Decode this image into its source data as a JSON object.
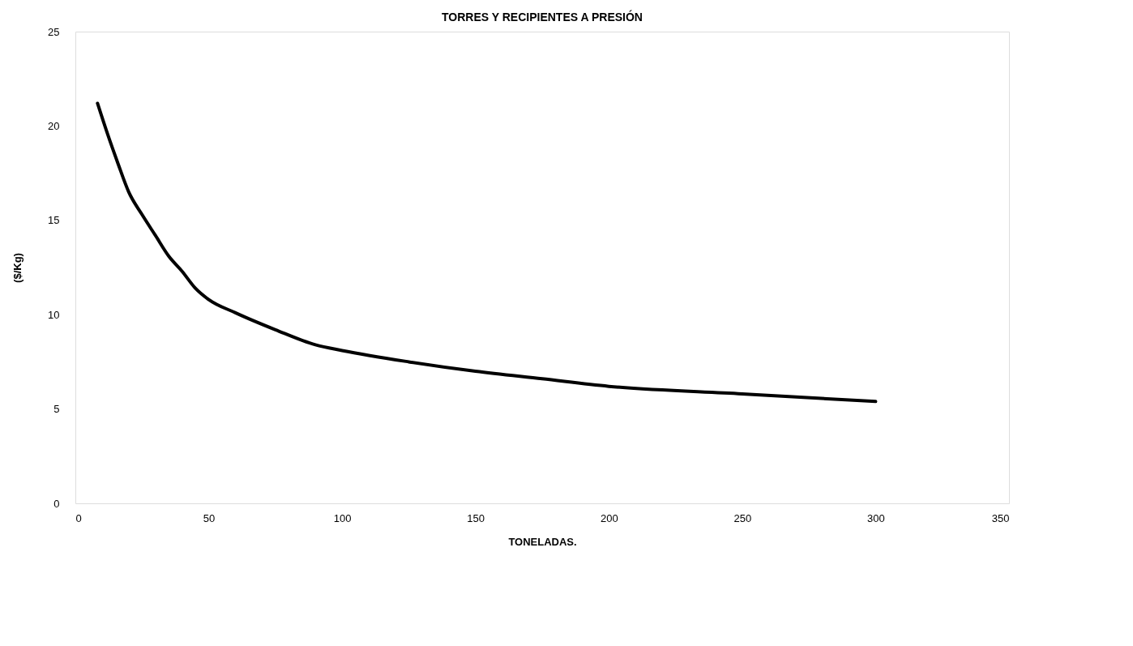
{
  "chart_data": {
    "type": "line",
    "title": "TORRES Y RECIPIENTES A PRESIÓN",
    "xlabel": "TONELADAS.",
    "ylabel": "($/Kg)",
    "x": [
      8.3,
      12,
      16,
      20,
      25,
      30,
      35,
      40,
      45,
      50,
      60,
      75,
      90,
      100,
      125,
      150,
      175,
      200,
      250,
      300
    ],
    "series": [
      {
        "color": "#000000",
        "values": [
          21.2,
          19.6,
          18.0,
          16.5,
          15.3,
          14.2,
          13.1,
          12.3,
          11.4,
          10.8,
          10.1,
          9.2,
          8.4,
          8.1,
          7.5,
          7.0,
          6.6,
          6.2,
          5.8,
          5.4
        ]
      }
    ],
    "xlim": [
      0,
      350
    ],
    "ylim": [
      0,
      25
    ],
    "xticks": [
      0,
      50,
      100,
      150,
      200,
      250,
      300,
      350
    ],
    "yticks": [
      0,
      5,
      10,
      15,
      20,
      25
    ]
  }
}
